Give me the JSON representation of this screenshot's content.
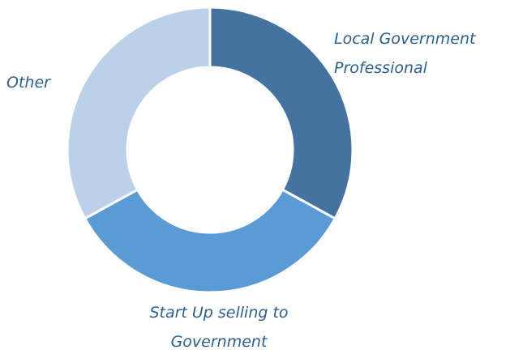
{
  "chart_data": {
    "type": "donut",
    "categories": [
      "Local Government Professional",
      "Start Up selling to Government",
      "Other"
    ],
    "values": [
      33,
      34,
      33
    ],
    "colors": [
      "#45739f",
      "#5b9bd5",
      "#bdd0ea"
    ]
  }
}
